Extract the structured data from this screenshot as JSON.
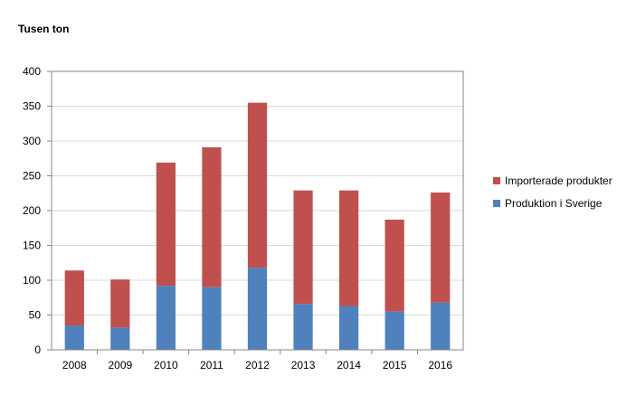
{
  "chart_data": {
    "type": "bar",
    "stacked": true,
    "title": "",
    "ylabel": "Tusen ton",
    "xlabel": "",
    "categories": [
      "2008",
      "2009",
      "2010",
      "2011",
      "2012",
      "2013",
      "2014",
      "2015",
      "2016"
    ],
    "series": [
      {
        "name": "Produktion i Sverige",
        "color": "#4F81BD",
        "values": [
          35,
          32,
          92,
          90,
          118,
          66,
          63,
          55,
          68
        ]
      },
      {
        "name": "Importerade produkter",
        "color": "#C0504D",
        "values": [
          79,
          69,
          177,
          201,
          237,
          163,
          166,
          132,
          158
        ]
      }
    ],
    "ylim": [
      0,
      400
    ],
    "yticks": [
      0,
      50,
      100,
      150,
      200,
      250,
      300,
      350,
      400
    ],
    "grid": true,
    "legend": "right"
  }
}
